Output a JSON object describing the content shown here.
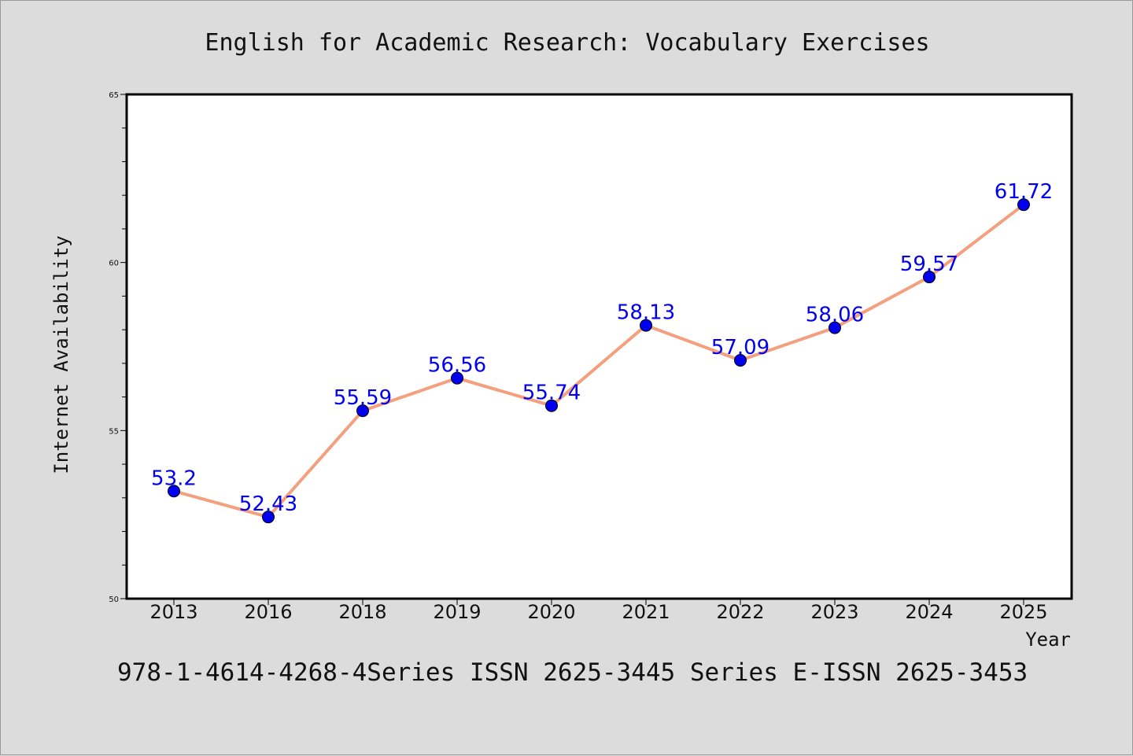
{
  "chart_data": {
    "type": "line",
    "title": "English for Academic Research: Vocabulary Exercises",
    "xlabel": "Year",
    "ylabel": "Internet Availability",
    "categories": [
      "2013",
      "2016",
      "2018",
      "2019",
      "2020",
      "2021",
      "2022",
      "2023",
      "2024",
      "2025"
    ],
    "series": [
      {
        "values": [
          53.2,
          52.43,
          55.59,
          56.56,
          55.74,
          58.13,
          57.09,
          58.06,
          59.57,
          61.72
        ],
        "labels": [
          "53.2",
          "52.43",
          "55.59",
          "56.56",
          "55.74",
          "58.13",
          "57.09",
          "58.06",
          "59.57",
          "61.72"
        ]
      }
    ],
    "ylim": [
      50,
      65
    ],
    "yticks": [
      "50",
      "55",
      "60",
      "65"
    ],
    "y_minor_step": 1,
    "grid": false,
    "legend": "none",
    "line_color": "#f4a07f",
    "marker_color": "#0000ee",
    "label_color": "#0000ee",
    "background": "#dcdcdc",
    "plot_background": "#ffffff"
  },
  "footer": {
    "text": "978-1-4614-4268-4Series ISSN 2625-3445 Series E-ISSN 2625-3453"
  }
}
